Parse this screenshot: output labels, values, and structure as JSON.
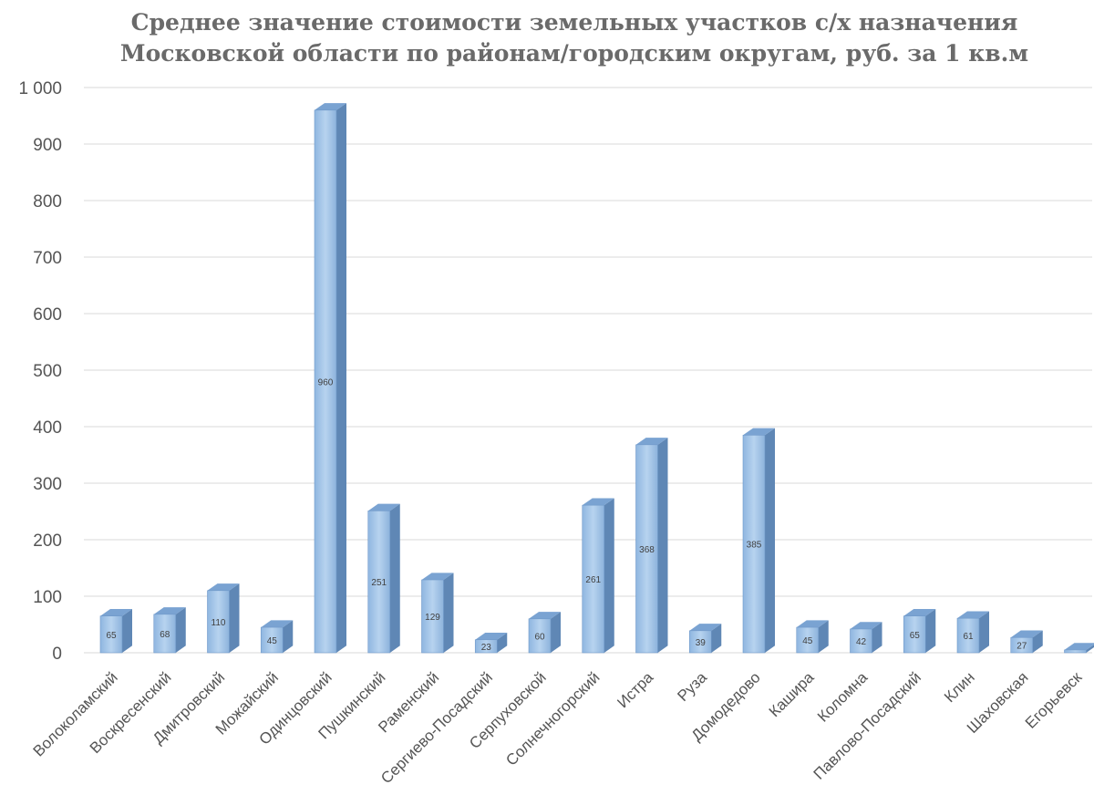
{
  "chart_data": {
    "type": "bar",
    "title": "Среднее значение стоимости земельных участков с/х назначения",
    "subtitle": "Московской области по районам/городским округам, руб. за 1 кв.м",
    "xlabel": "",
    "ylabel": "",
    "ylim": [
      0,
      1000
    ],
    "yticks": [
      "0",
      "100",
      "200",
      "300",
      "400",
      "500",
      "600",
      "700",
      "800",
      "900",
      "1 000"
    ],
    "grid": true,
    "categories": [
      "Волоколамский",
      "Воскресенский",
      "Дмитровский",
      "Можайский",
      "Одинцовский",
      "Пушкинский",
      "Раменский",
      "Сергиево-Посадский",
      "Серпуховской",
      "Солнечногорский",
      "Истра",
      "Руза",
      "Домодедово",
      "Кашира",
      "Коломна",
      "Павлово-Посадский",
      "Клин",
      "Шаховская",
      "Егорьевск"
    ],
    "values": [
      65,
      68,
      110,
      45,
      960,
      251,
      129,
      23,
      60,
      261,
      368,
      39,
      385,
      45,
      42,
      65,
      61,
      27,
      5
    ],
    "data_labels": [
      "65",
      "68",
      "110",
      "45",
      "960",
      "251",
      "129",
      "23",
      "60",
      "261",
      "368",
      "39",
      "385",
      "45",
      "42",
      "65",
      "61",
      "27",
      ""
    ],
    "bar_color": "#9dc3e6",
    "bar_side_color": "#5f87b5"
  }
}
